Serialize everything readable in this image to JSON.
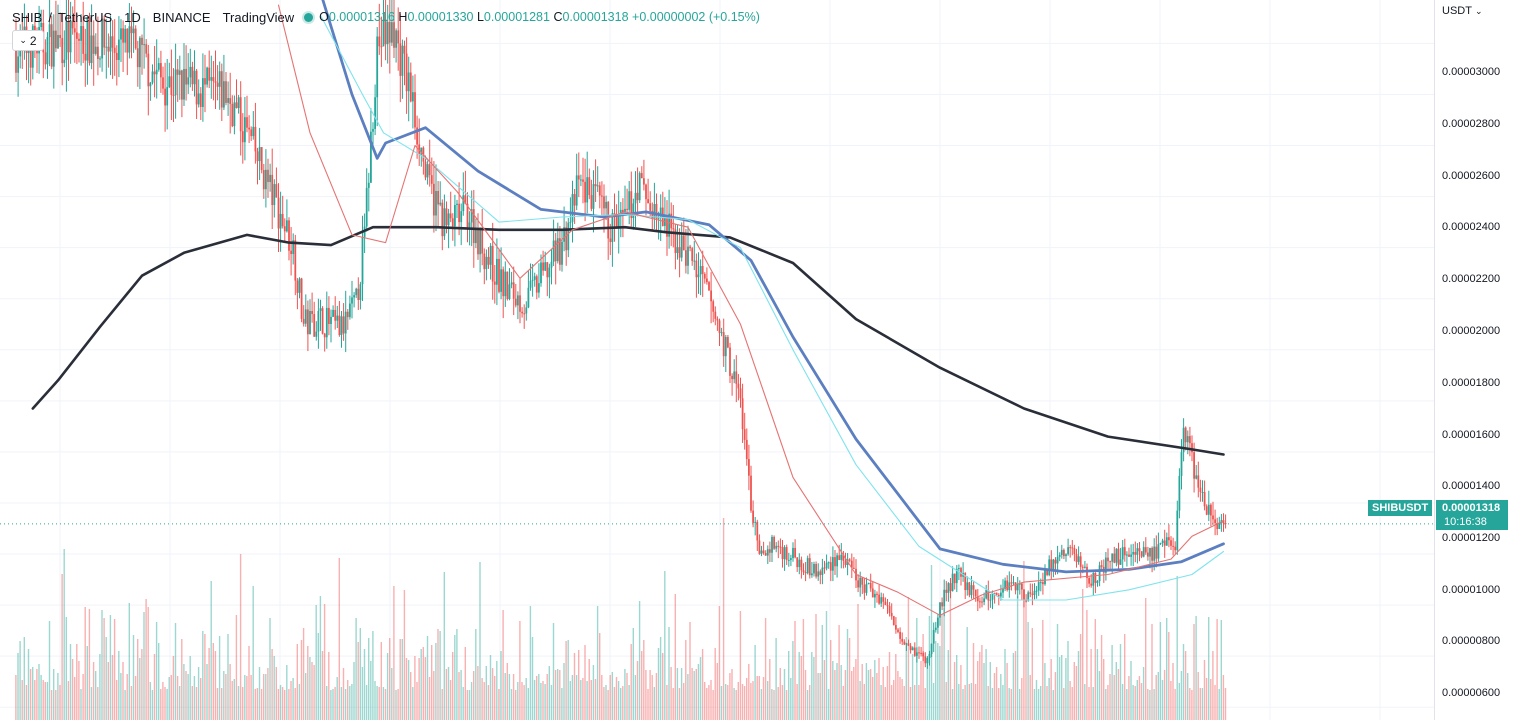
{
  "header": {
    "symbol": "SHIB",
    "quote": "TetherUS",
    "interval": "1D",
    "exchange": "BINANCE",
    "source": "TradingView",
    "o_label": "O",
    "o_value": "0.00001316",
    "h_label": "H",
    "h_value": "0.00001330",
    "l_label": "L",
    "l_value": "0.00001281",
    "c_label": "C",
    "c_value": "0.00001318",
    "change": "+0.00000002 (+0.15%)"
  },
  "indicators_button": {
    "count": "2"
  },
  "price_axis": {
    "currency": "USDT",
    "tick_labels": [
      "0.00003000",
      "0.00002800",
      "0.00002600",
      "0.00002400",
      "0.00002200",
      "0.00002000",
      "0.00001800",
      "0.00001600",
      "0.00001400",
      "0.00001200",
      "0.00001000",
      "0.00000800",
      "0.00000600"
    ]
  },
  "last_price": {
    "symbol_label": "SHIBUSDT",
    "price": "0.00001318",
    "countdown": "10:16:38"
  },
  "colors": {
    "up": "#26a69a",
    "down": "#ef5350",
    "ma_fast": "#e57373",
    "ma_mid": "#7fe3ee",
    "ma_slow": "#5b7fc0",
    "ma_long": "#2a2e39"
  },
  "chart_data": {
    "type": "candlestick",
    "x_unit": "daily bars",
    "y_range": [
      5.5e-06,
      3.37e-05
    ],
    "candles": [],
    "moving_averages": [
      {
        "key": "ma_long",
        "values": [
          [
            8,
            1.77e-05
          ],
          [
            20,
            1.88e-05
          ],
          [
            40,
            2.09e-05
          ],
          [
            60,
            2.29e-05
          ],
          [
            80,
            2.38e-05
          ],
          [
            110,
            2.45e-05
          ],
          [
            130,
            2.42e-05
          ],
          [
            150,
            2.41e-05
          ],
          [
            170,
            2.48e-05
          ],
          [
            200,
            2.48e-05
          ],
          [
            230,
            2.47e-05
          ],
          [
            260,
            2.47e-05
          ],
          [
            290,
            2.48e-05
          ],
          [
            310,
            2.46e-05
          ],
          [
            340,
            2.44e-05
          ],
          [
            370,
            2.34e-05
          ],
          [
            400,
            2.12e-05
          ],
          [
            440,
            1.93e-05
          ],
          [
            480,
            1.77e-05
          ],
          [
            520,
            1.66e-05
          ],
          [
            560,
            1.61e-05
          ],
          [
            575,
            1.59e-05
          ]
        ]
      },
      {
        "key": "ma_slow",
        "values": [
          [
            145,
            3.4e-05
          ],
          [
            160,
            3e-05
          ],
          [
            172,
            2.75e-05
          ],
          [
            176,
            2.81e-05
          ],
          [
            195,
            2.87e-05
          ],
          [
            220,
            2.7e-05
          ],
          [
            250,
            2.55e-05
          ],
          [
            280,
            2.52e-05
          ],
          [
            300,
            2.54e-05
          ],
          [
            330,
            2.49e-05
          ],
          [
            350,
            2.35e-05
          ],
          [
            370,
            2.05e-05
          ],
          [
            400,
            1.65e-05
          ],
          [
            440,
            1.22e-05
          ],
          [
            470,
            1.16e-05
          ],
          [
            500,
            1.13e-05
          ],
          [
            530,
            1.14e-05
          ],
          [
            555,
            1.17e-05
          ],
          [
            575,
            1.24e-05
          ]
        ]
      },
      {
        "key": "ma_mid",
        "values": [
          [
            145,
            3.31e-05
          ],
          [
            165,
            3e-05
          ],
          [
            175,
            2.85e-05
          ],
          [
            195,
            2.75e-05
          ],
          [
            230,
            2.5e-05
          ],
          [
            260,
            2.52e-05
          ],
          [
            290,
            2.53e-05
          ],
          [
            320,
            2.51e-05
          ],
          [
            345,
            2.4e-05
          ],
          [
            370,
            2e-05
          ],
          [
            400,
            1.55e-05
          ],
          [
            430,
            1.23e-05
          ],
          [
            470,
            1.02e-05
          ],
          [
            500,
            1.02e-05
          ],
          [
            530,
            1.06e-05
          ],
          [
            560,
            1.12e-05
          ],
          [
            575,
            1.21e-05
          ]
        ]
      },
      {
        "key": "ma_fast",
        "values": [
          [
            125,
            3.35e-05
          ],
          [
            140,
            2.85e-05
          ],
          [
            160,
            2.45e-05
          ],
          [
            176,
            2.42e-05
          ],
          [
            190,
            2.8e-05
          ],
          [
            210,
            2.62e-05
          ],
          [
            240,
            2.28e-05
          ],
          [
            265,
            2.47e-05
          ],
          [
            290,
            2.54e-05
          ],
          [
            320,
            2.48e-05
          ],
          [
            345,
            2.1e-05
          ],
          [
            370,
            1.5e-05
          ],
          [
            400,
            1.12e-05
          ],
          [
            420,
            1.05e-05
          ],
          [
            440,
            9.6e-06
          ],
          [
            460,
            1.04e-05
          ],
          [
            480,
            1.09e-05
          ],
          [
            520,
            1.12e-05
          ],
          [
            550,
            1.18e-05
          ],
          [
            560,
            1.27e-05
          ],
          [
            575,
            1.33e-05
          ]
        ]
      }
    ],
    "volume": []
  }
}
